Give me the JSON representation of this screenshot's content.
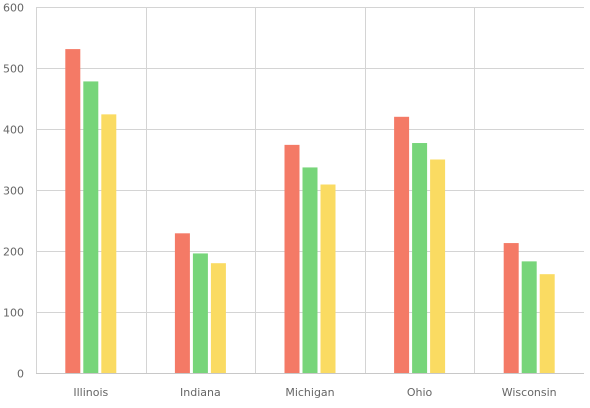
{
  "chart_data": {
    "type": "bar",
    "title": "",
    "xlabel": "",
    "ylabel": "",
    "categories": [
      "Illinois",
      "Indiana",
      "Michigan",
      "Ohio",
      "Wisconsin"
    ],
    "series": [
      {
        "color": "#f47a66",
        "values": [
          531,
          229,
          374,
          420,
          213
        ]
      },
      {
        "color": "#77d57a",
        "values": [
          478,
          196,
          337,
          377,
          183
        ]
      },
      {
        "color": "#fadb62",
        "values": [
          424,
          180,
          309,
          350,
          162
        ]
      }
    ],
    "ylim": [
      0,
      600
    ],
    "yticks": [
      "0",
      "100",
      "200",
      "300",
      "400",
      "500",
      "600"
    ],
    "grid": true,
    "legend": "none",
    "colors": {
      "grid": "#d4d4d4",
      "axis": "#c8c8c8",
      "tick_label": "#666666"
    }
  }
}
